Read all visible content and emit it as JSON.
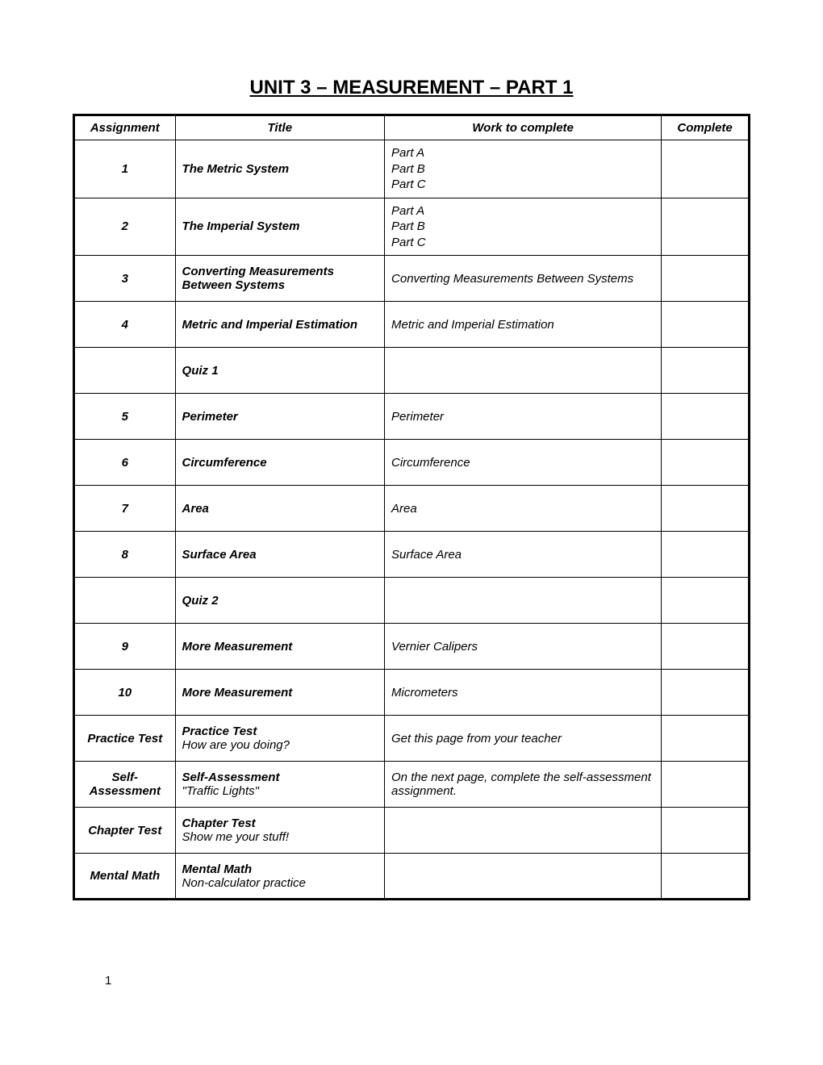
{
  "document": {
    "title": "UNIT 3 – MEASUREMENT – PART 1",
    "pageNumber": "1",
    "headers": {
      "assignment": "Assignment",
      "title": "Title",
      "work": "Work to complete",
      "complete": "Complete"
    },
    "rows": [
      {
        "assignment": "1",
        "titleBold": "The Metric System",
        "titleSub": "",
        "work": "Part A\nPart B\nPart C",
        "multiLine": true
      },
      {
        "assignment": "2",
        "titleBold": "The Imperial System",
        "titleSub": "",
        "work": "Part A\nPart B\nPart C",
        "multiLine": true
      },
      {
        "assignment": "3",
        "titleBold": "Converting Measurements Between Systems",
        "titleSub": "",
        "work": "Converting Measurements Between Systems",
        "multiLine": false
      },
      {
        "assignment": "4",
        "titleBold": "Metric and Imperial Estimation",
        "titleSub": "",
        "work": "Metric and Imperial Estimation",
        "multiLine": false
      },
      {
        "assignment": "",
        "titleBold": "Quiz 1",
        "titleSub": "",
        "work": "",
        "multiLine": false
      },
      {
        "assignment": "5",
        "titleBold": "Perimeter",
        "titleSub": "",
        "work": "Perimeter",
        "multiLine": false
      },
      {
        "assignment": "6",
        "titleBold": "Circumference",
        "titleSub": "",
        "work": "Circumference",
        "multiLine": false
      },
      {
        "assignment": "7",
        "titleBold": "Area",
        "titleSub": "",
        "work": "Area",
        "multiLine": false
      },
      {
        "assignment": "8",
        "titleBold": "Surface Area",
        "titleSub": "",
        "work": "Surface Area",
        "multiLine": false
      },
      {
        "assignment": "",
        "titleBold": "Quiz 2",
        "titleSub": "",
        "work": "",
        "multiLine": false
      },
      {
        "assignment": "9",
        "titleBold": "More Measurement",
        "titleSub": "",
        "work": "Vernier Calipers",
        "multiLine": false
      },
      {
        "assignment": "10",
        "titleBold": "More Measurement",
        "titleSub": "",
        "work": "Micrometers",
        "multiLine": false
      },
      {
        "assignment": "Practice Test",
        "titleBold": "Practice Test",
        "titleSub": "How are you doing?",
        "work": "Get this page from your teacher",
        "multiLine": false
      },
      {
        "assignment": "Self-Assessment",
        "titleBold": "Self-Assessment",
        "titleSub": "\"Traffic Lights\"",
        "work": "On the next page, complete the self-assessment assignment.",
        "multiLine": false
      },
      {
        "assignment": "Chapter Test",
        "titleBold": "Chapter Test",
        "titleSub": "Show me your stuff!",
        "work": "",
        "multiLine": false
      },
      {
        "assignment": "Mental Math",
        "titleBold": "Mental Math",
        "titleSub": "Non-calculator practice",
        "work": "",
        "multiLine": false
      }
    ]
  }
}
